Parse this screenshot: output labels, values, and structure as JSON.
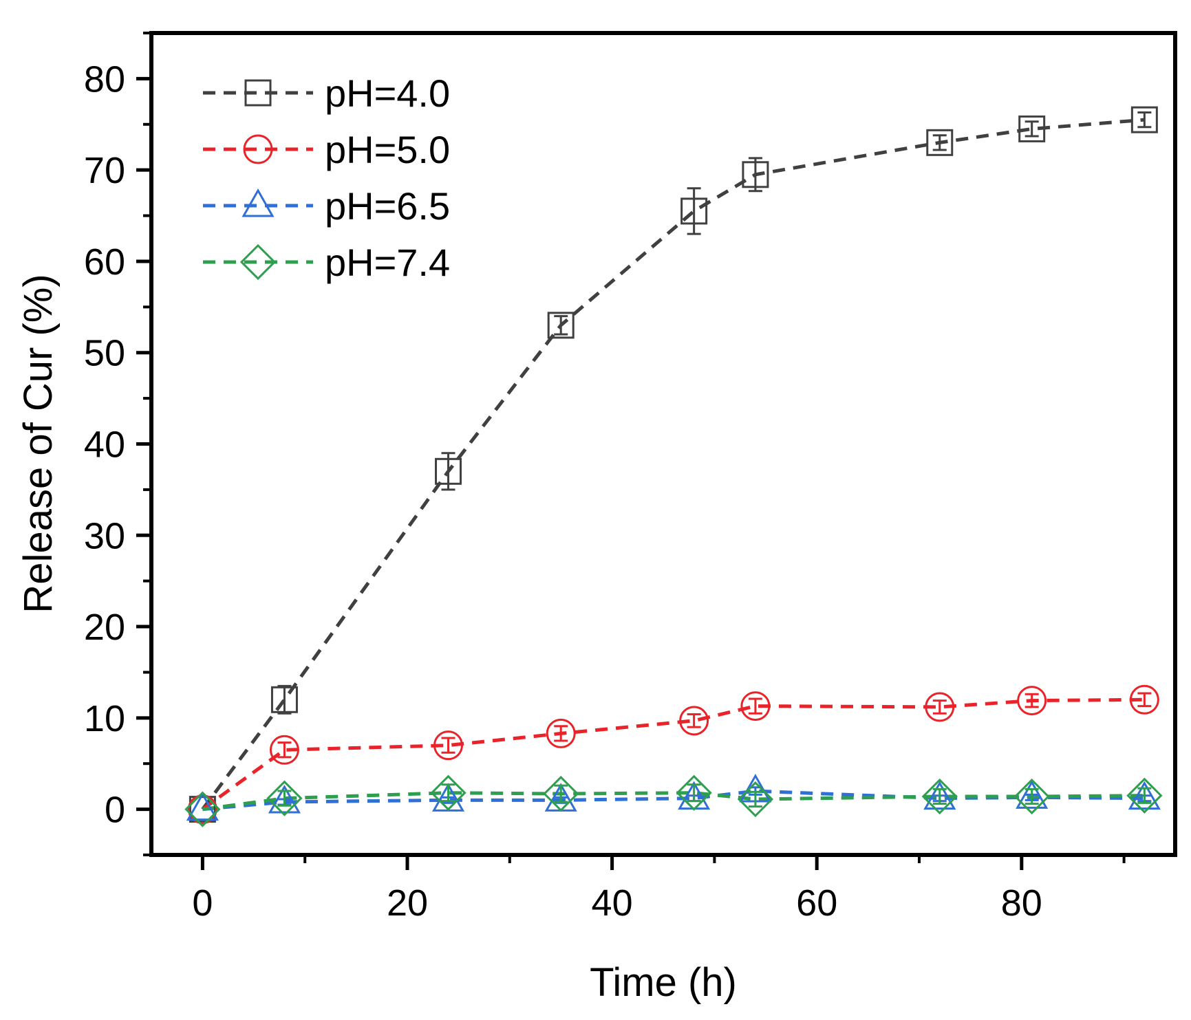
{
  "chart_data": {
    "type": "line",
    "title": "",
    "xlabel": "Time (h)",
    "ylabel": "Release of Cur (%)",
    "xlim": [
      -5,
      95
    ],
    "ylim": [
      -5,
      85
    ],
    "xticks": [
      0,
      20,
      40,
      60,
      80
    ],
    "xticks_minor": [
      10,
      30,
      50,
      70,
      90
    ],
    "yticks": [
      0,
      10,
      20,
      30,
      40,
      50,
      60,
      70,
      80
    ],
    "grid": false,
    "legend_position": "top-left",
    "x": [
      0,
      8,
      24,
      35,
      48,
      54,
      72,
      81,
      92
    ],
    "series": [
      {
        "name": "pH=4.0",
        "color": "#404040",
        "marker": "square",
        "values": [
          0,
          12,
          37,
          53,
          65.5,
          69.5,
          73,
          74.5,
          75.5
        ],
        "errors": [
          0,
          1.5,
          2,
          1,
          2.5,
          1.8,
          0.8,
          0.8,
          0.8
        ]
      },
      {
        "name": "pH=5.0",
        "color": "#e8242a",
        "marker": "circle",
        "values": [
          0,
          6.5,
          7,
          8.3,
          9.7,
          11.3,
          11.2,
          11.9,
          12
        ],
        "errors": [
          0,
          0.8,
          0.8,
          0.8,
          0.7,
          0.8,
          0.7,
          0.7,
          0.7
        ]
      },
      {
        "name": "pH=6.5",
        "color": "#2f6fd6",
        "marker": "triangle",
        "values": [
          0,
          0.8,
          1,
          1,
          1.2,
          2,
          1.2,
          1.3,
          1.2
        ],
        "errors": [
          0,
          0.3,
          0.3,
          0.3,
          0.3,
          0.4,
          0.3,
          0.3,
          0.3
        ]
      },
      {
        "name": "pH=7.4",
        "color": "#2e9e4f",
        "marker": "diamond",
        "values": [
          0,
          1.2,
          1.8,
          1.7,
          1.8,
          1.1,
          1.4,
          1.4,
          1.5
        ],
        "errors": [
          0,
          0.8,
          0.9,
          0.9,
          0.9,
          0.8,
          0.8,
          0.8,
          0.8
        ]
      }
    ]
  }
}
